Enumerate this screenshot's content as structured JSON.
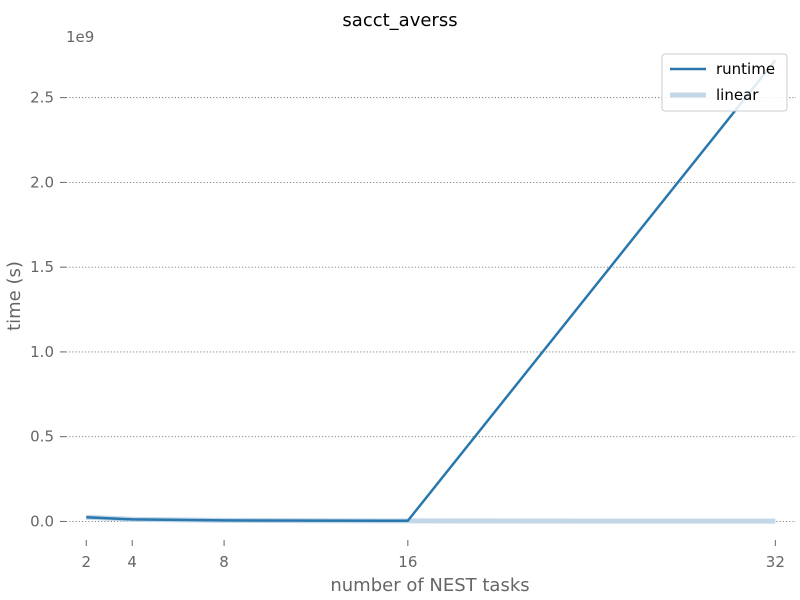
{
  "chart_data": {
    "type": "line",
    "title": "sacct_averss",
    "xlabel": "number of NEST tasks",
    "ylabel": "time (s)",
    "y_offset_label": "1e9",
    "x_ticks": [
      2,
      4,
      8,
      16,
      32
    ],
    "y_ticks": [
      0.0,
      0.5,
      1.0,
      1.5,
      2.0,
      2.5
    ],
    "y_tick_labels": [
      "0.0",
      "0.5",
      "1.0",
      "1.5",
      "2.0",
      "2.5"
    ],
    "xlim": [
      0.9,
      32.9
    ],
    "ylim": [
      -0.08,
      2.84
    ],
    "y_scale_note": "values in units of 1e9 s",
    "grid": "horizontal dotted",
    "legend_position": "top-right",
    "series": [
      {
        "name": "runtime",
        "color": "#2a77ae",
        "x": [
          2,
          4,
          8,
          16,
          32
        ],
        "y": [
          0.025,
          0.012,
          0.006,
          0.004,
          2.72
        ]
      },
      {
        "name": "linear",
        "color": "#c2d7e8",
        "x": [
          2,
          4,
          8,
          16,
          32
        ],
        "y": [
          0.025,
          0.0125,
          0.00625,
          0.003125,
          0.0015625
        ]
      }
    ]
  }
}
